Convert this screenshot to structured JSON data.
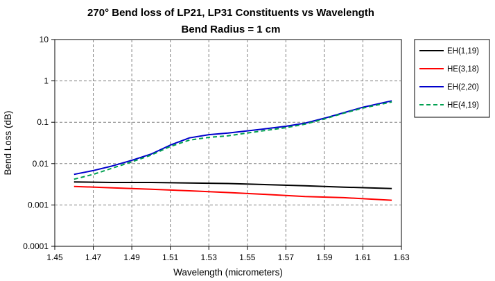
{
  "chart_data": {
    "type": "line",
    "title_line1": "270° Bend loss of LP21, LP31 Constituents vs Wavelength",
    "title_line2": "Bend Radius = 1 cm",
    "xlabel": "Wavelength (micrometers)",
    "ylabel": "Bend Loss (dB)",
    "xlim": [
      1.45,
      1.63
    ],
    "ylim": [
      0.0001,
      10
    ],
    "yscale": "log",
    "grid": true,
    "legend_position": "top-right",
    "x_ticks": [
      "1.45",
      "1.47",
      "1.49",
      "1.51",
      "1.53",
      "1.55",
      "1.57",
      "1.59",
      "1.61",
      "1.63"
    ],
    "y_ticks": [
      "0.0001",
      "0.001",
      "0.01",
      "0.1",
      "1",
      "10"
    ],
    "series": [
      {
        "name": "EH(1,19)",
        "color": "#000000",
        "dash": "solid",
        "x": [
          1.46,
          1.48,
          1.5,
          1.52,
          1.54,
          1.56,
          1.58,
          1.6,
          1.625
        ],
        "y": [
          0.0036,
          0.0035,
          0.0035,
          0.0034,
          0.0033,
          0.0031,
          0.0029,
          0.0027,
          0.0025
        ]
      },
      {
        "name": "HE(3,18)",
        "color": "#ff0000",
        "dash": "solid",
        "x": [
          1.46,
          1.48,
          1.5,
          1.52,
          1.54,
          1.56,
          1.58,
          1.6,
          1.625
        ],
        "y": [
          0.0028,
          0.0026,
          0.0024,
          0.0022,
          0.002,
          0.0018,
          0.0016,
          0.0015,
          0.0013
        ]
      },
      {
        "name": "EH(2,20)",
        "color": "#0000cc",
        "dash": "solid",
        "x": [
          1.46,
          1.47,
          1.48,
          1.49,
          1.5,
          1.51,
          1.52,
          1.53,
          1.54,
          1.55,
          1.56,
          1.57,
          1.58,
          1.59,
          1.6,
          1.61,
          1.625
        ],
        "y": [
          0.0055,
          0.0068,
          0.0088,
          0.012,
          0.017,
          0.028,
          0.042,
          0.05,
          0.055,
          0.062,
          0.07,
          0.08,
          0.095,
          0.125,
          0.17,
          0.23,
          0.33
        ]
      },
      {
        "name": "HE(4,19)",
        "color": "#00a050",
        "dash": "dashed",
        "x": [
          1.46,
          1.47,
          1.48,
          1.49,
          1.5,
          1.51,
          1.52,
          1.53,
          1.54,
          1.55,
          1.56,
          1.57,
          1.58,
          1.59,
          1.6,
          1.61,
          1.625
        ],
        "y": [
          0.0042,
          0.0055,
          0.0078,
          0.011,
          0.016,
          0.026,
          0.037,
          0.043,
          0.047,
          0.055,
          0.064,
          0.074,
          0.09,
          0.12,
          0.165,
          0.22,
          0.31
        ]
      }
    ]
  }
}
